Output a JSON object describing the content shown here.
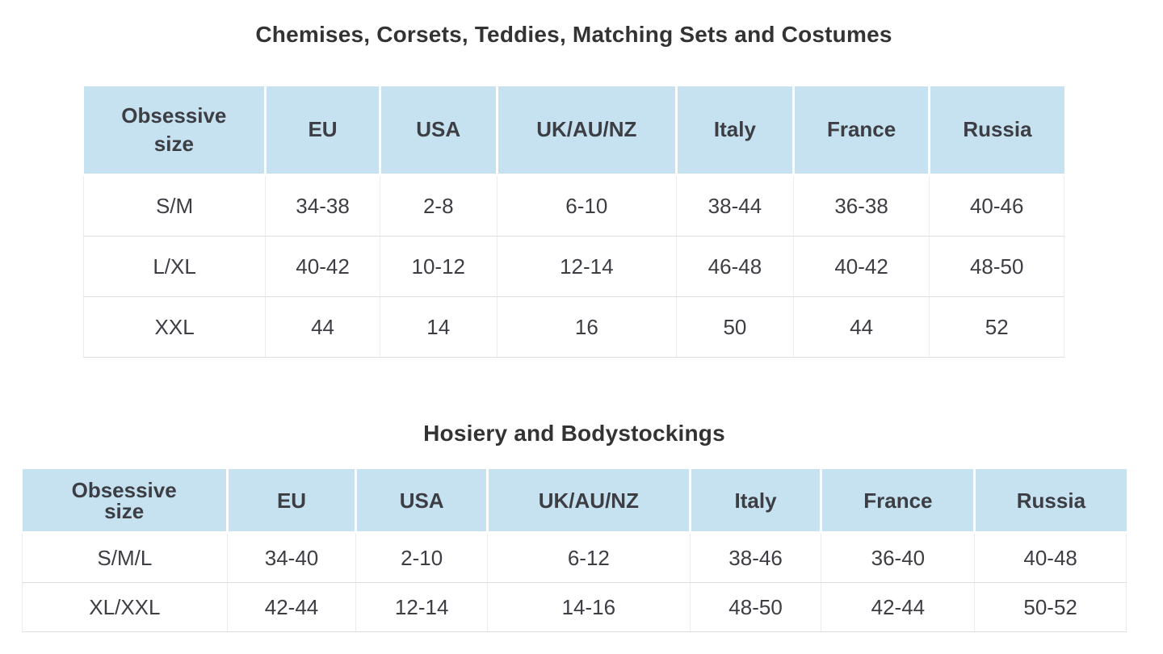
{
  "theme": {
    "page_bg": "#ffffff",
    "header_bg": "#c6e2f1",
    "header_divider": "#ffffff",
    "row_divider": "#dedede",
    "column_divider": "#ececec",
    "title_color": "#333333",
    "text_color": "#3d3d44"
  },
  "tables": [
    {
      "title": "Chemises, Corsets, Teddies, Matching Sets and Costumes",
      "columns": [
        "Obsessive size",
        "EU",
        "USA",
        "UK/AU/NZ",
        "Italy",
        "France",
        "Russia"
      ],
      "rows": [
        [
          "S/M",
          "34-38",
          "2-8",
          "6-10",
          "38-44",
          "36-38",
          "40-46"
        ],
        [
          "L/XL",
          "40-42",
          "10-12",
          "12-14",
          "46-48",
          "40-42",
          "48-50"
        ],
        [
          "XXL",
          "44",
          "14",
          "16",
          "50",
          "44",
          "52"
        ]
      ]
    },
    {
      "title": "Hosiery and Bodystockings",
      "columns": [
        "Obsessive size",
        "EU",
        "USA",
        "UK/AU/NZ",
        "Italy",
        "France",
        "Russia"
      ],
      "rows": [
        [
          "S/M/L",
          "34-40",
          "2-10",
          "6-12",
          "38-46",
          "36-40",
          "40-48"
        ],
        [
          "XL/XXL",
          "42-44",
          "12-14",
          "14-16",
          "48-50",
          "42-44",
          "50-52"
        ]
      ]
    }
  ]
}
